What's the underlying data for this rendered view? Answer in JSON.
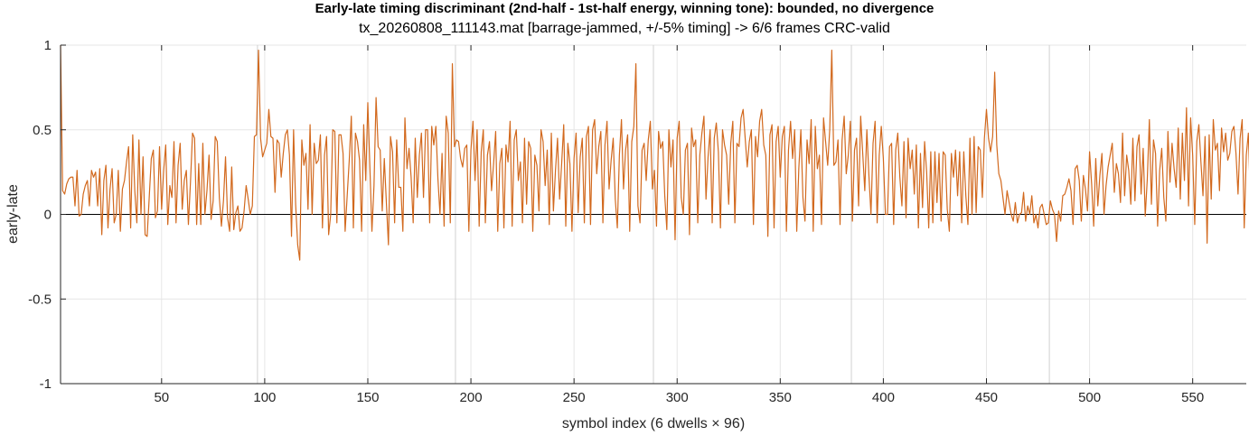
{
  "chart_data": {
    "type": "line",
    "title": "Early-late timing discriminant (2nd-half - 1st-half energy, winning tone): bounded, no divergence",
    "subtitle": "tx_20260808_111143.mat  [barrage-jammed, +/-5% timing]  ->  6/6 frames CRC-valid",
    "xlabel": "symbol index (6 dwells × 96)",
    "ylabel": "early-late",
    "xlim": [
      1,
      576
    ],
    "ylim": [
      -1,
      1
    ],
    "xticks": [
      50,
      100,
      150,
      200,
      250,
      300,
      350,
      400,
      450,
      500,
      550
    ],
    "yticks": [
      -1,
      -0.5,
      0,
      0.5,
      1
    ],
    "ytick_labels": [
      "-1",
      "-0.5",
      "0",
      "0.5",
      "1"
    ],
    "grid": true,
    "zero_line": true,
    "dwell_boundaries": [
      96,
      192,
      288,
      384,
      480
    ],
    "series": [
      {
        "color": "#d2691e",
        "x_start": 1,
        "values": [
          1.0,
          0.14,
          0.12,
          0.18,
          0.21,
          0.22,
          0.22,
          0.05,
          0.26,
          -0.01,
          0.0,
          0.12,
          0.17,
          0.2,
          0.05,
          0.26,
          0.22,
          0.25,
          0.05,
          0.27,
          -0.12,
          0.2,
          0.29,
          -0.08,
          0.15,
          0.27,
          -0.05,
          0.0,
          0.26,
          -0.1,
          0.15,
          0.2,
          0.31,
          0.4,
          -0.08,
          0.47,
          0.14,
          -0.05,
          0.44,
          0.0,
          0.34,
          -0.12,
          -0.13,
          0.1,
          0.33,
          0.38,
          -0.02,
          0.02,
          0.4,
          0.03,
          0.26,
          0.41,
          -0.06,
          0.17,
          0.1,
          0.43,
          -0.05,
          0.29,
          0.42,
          0.03,
          0.2,
          0.26,
          -0.06,
          0.19,
          0.48,
          0.45,
          -0.06,
          0.3,
          -0.06,
          0.42,
          0.0,
          0.14,
          0.35,
          -0.03,
          0.08,
          0.46,
          0.43,
          0.1,
          -0.07,
          0.08,
          0.34,
          -0.02,
          -0.1,
          0.28,
          -0.09,
          0.01,
          0.05,
          -0.1,
          -0.08,
          0.02,
          0.17,
          0.09,
          0.0,
          0.05,
          0.46,
          0.47,
          0.97,
          0.45,
          0.34,
          0.38,
          0.42,
          0.62,
          0.46,
          0.45,
          0.13,
          0.44,
          0.42,
          0.22,
          0.36,
          0.47,
          0.5,
          0.35,
          -0.13,
          0.5,
          0.06,
          -0.18,
          -0.27,
          0.44,
          0.29,
          0.36,
          0.03,
          0.53,
          0.0,
          0.42,
          0.3,
          0.32,
          0.47,
          -0.08,
          0.35,
          0.46,
          -0.12,
          0.0,
          0.5,
          0.49,
          -0.05,
          0.47,
          0.47,
          0.36,
          -0.1,
          0.11,
          0.32,
          0.58,
          -0.08,
          0.48,
          0.43,
          0.32,
          -0.1,
          0.53,
          0.2,
          0.66,
          0.28,
          -0.1,
          0.17,
          0.69,
          0.4,
          0.38,
          0.02,
          0.33,
          0.07,
          -0.18,
          0.46,
          0.37,
          -0.05,
          0.44,
          0.16,
          0.16,
          -0.1,
          0.57,
          0.27,
          0.39,
          0.22,
          -0.05,
          0.45,
          0.1,
          0.35,
          0.48,
          0.1,
          0.5,
          0.5,
          -0.05,
          0.52,
          0.41,
          0.52,
          0.21,
          0.0,
          0.36,
          -0.07,
          0.58,
          0.48,
          -0.05,
          0.89,
          0.4,
          0.44,
          0.43,
          0.33,
          0.28,
          0.39,
          0.41,
          -0.1,
          0.38,
          0.55,
          0.2,
          0.5,
          -0.07,
          0.37,
          0.5,
          -0.05,
          0.35,
          0.43,
          0.14,
          0.3,
          0.49,
          -0.1,
          0.3,
          0.39,
          -0.08,
          0.41,
          0.31,
          0.55,
          -0.07,
          0.44,
          0.5,
          0.2,
          0.31,
          -0.05,
          0.45,
          0.06,
          0.43,
          0.39,
          -0.1,
          0.35,
          0.29,
          0.02,
          0.5,
          0.43,
          0.17,
          0.38,
          -0.06,
          0.48,
          0.02,
          0.26,
          0.45,
          0.09,
          0.3,
          0.53,
          -0.07,
          0.42,
          0.3,
          -0.1,
          0.33,
          0.48,
          0.01,
          0.34,
          0.45,
          -0.05,
          0.46,
          0.52,
          -0.06,
          0.5,
          0.56,
          0.24,
          0.4,
          0.49,
          -0.05,
          0.41,
          0.55,
          0.15,
          0.32,
          0.45,
          0.09,
          -0.08,
          0.35,
          0.56,
          0.15,
          0.38,
          0.47,
          -0.1,
          0.43,
          0.52,
          0.89,
          0.05,
          -0.05,
          0.38,
          0.42,
          0.2,
          0.44,
          0.55,
          0.15,
          0.26,
          -0.07,
          0.49,
          0.39,
          0.43,
          0.11,
          -0.09,
          0.5,
          0.28,
          0.44,
          -0.15,
          0.45,
          0.55,
          0.1,
          0.0,
          0.38,
          0.42,
          -0.12,
          0.51,
          0.4,
          0.44,
          -0.05,
          0.35,
          0.48,
          0.58,
          0.09,
          0.34,
          0.5,
          -0.05,
          0.45,
          0.54,
          0.37,
          -0.08,
          0.5,
          0.41,
          0.35,
          0.06,
          0.42,
          0.55,
          -0.05,
          0.42,
          0.4,
          0.57,
          0.62,
          0.45,
          0.28,
          0.43,
          0.5,
          -0.06,
          0.46,
          0.34,
          0.55,
          0.62,
          0.41,
          0.35,
          -0.13,
          0.47,
          0.53,
          -0.08,
          0.43,
          0.52,
          0.22,
          0.46,
          0.52,
          -0.1,
          0.38,
          0.55,
          0.33,
          0.5,
          -0.1,
          0.27,
          0.5,
          0.1,
          -0.04,
          0.44,
          0.3,
          0.56,
          -0.1,
          0.52,
          0.27,
          0.35,
          -0.06,
          0.57,
          0.43,
          0.29,
          0.5,
          0.97,
          0.29,
          0.31,
          0.44,
          -0.06,
          0.44,
          0.58,
          0.24,
          0.35,
          0.55,
          -0.04,
          0.38,
          0.45,
          0.05,
          0.58,
          0.36,
          0.14,
          0.5,
          0.23,
          0.0,
          0.42,
          0.55,
          -0.05,
          0.35,
          0.52,
          0.33,
          0.0,
          0.0,
          0.4,
          0.42,
          -0.06,
          0.38,
          0.48,
          0.22,
          0.05,
          0.43,
          -0.02,
          0.45,
          0.27,
          0.38,
          0.12,
          0.41,
          -0.08,
          0.36,
          0.04,
          0.43,
          0.25,
          -0.08,
          0.37,
          -0.05,
          0.37,
          0.07,
          0.36,
          -0.04,
          0.37,
          0.35,
          0.03,
          -0.1,
          0.36,
          0.22,
          0.38,
          0.11,
          0.37,
          -0.05,
          0.37,
          0.11,
          -0.06,
          0.45,
          0.0,
          0.46,
          0.01,
          0.4,
          0.38,
          0.1,
          0.45,
          0.62,
          0.45,
          0.37,
          0.46,
          0.84,
          0.41,
          0.24,
          0.2,
          0.1,
          0.0,
          0.14,
          0.07,
          0.0,
          -0.04,
          0.07,
          -0.05,
          0.0,
          0.01,
          0.13,
          -0.04,
          0.05,
          0.0,
          0.11,
          -0.05,
          0.0,
          -0.08,
          0.04,
          0.06,
          0.0,
          -0.06,
          -0.05,
          0.08,
          0.03,
          0.0,
          -0.16,
          0.02,
          -0.04,
          0.11,
          0.12,
          0.16,
          0.21,
          0.14,
          -0.06,
          0.27,
          0.29,
          0.2,
          -0.04,
          0.23,
          0.15,
          0.02,
          0.37,
          0.18,
          -0.07,
          0.33,
          0.05,
          0.23,
          0.36,
          0.0,
          0.17,
          0.28,
          0.35,
          0.42,
          0.13,
          0.3,
          0.24,
          0.07,
          0.48,
          0.11,
          0.35,
          0.26,
          0.06,
          0.45,
          0.08,
          0.4,
          0.47,
          0.12,
          0.39,
          -0.01,
          0.21,
          0.56,
          0.06,
          0.44,
          0.36,
          -0.07,
          0.26,
          0.39,
          0.1,
          -0.04,
          0.49,
          0.19,
          0.42,
          0.27,
          0.16,
          0.51,
          0.09,
          0.48,
          0.2,
          0.63,
          0.05,
          0.57,
          0.35,
          -0.06,
          0.43,
          0.53,
          0.31,
          0.11,
          0.46,
          -0.17,
          0.47,
          0.09,
          0.56,
          0.38,
          0.42,
          0.14,
          0.51,
          0.37,
          0.48,
          0.32,
          0.36,
          0.49,
          0.52,
          0.36,
          0.12,
          0.45,
          0.56,
          -0.08,
          0.35,
          0.48,
          0.09,
          0.08,
          0.48
        ]
      }
    ]
  }
}
